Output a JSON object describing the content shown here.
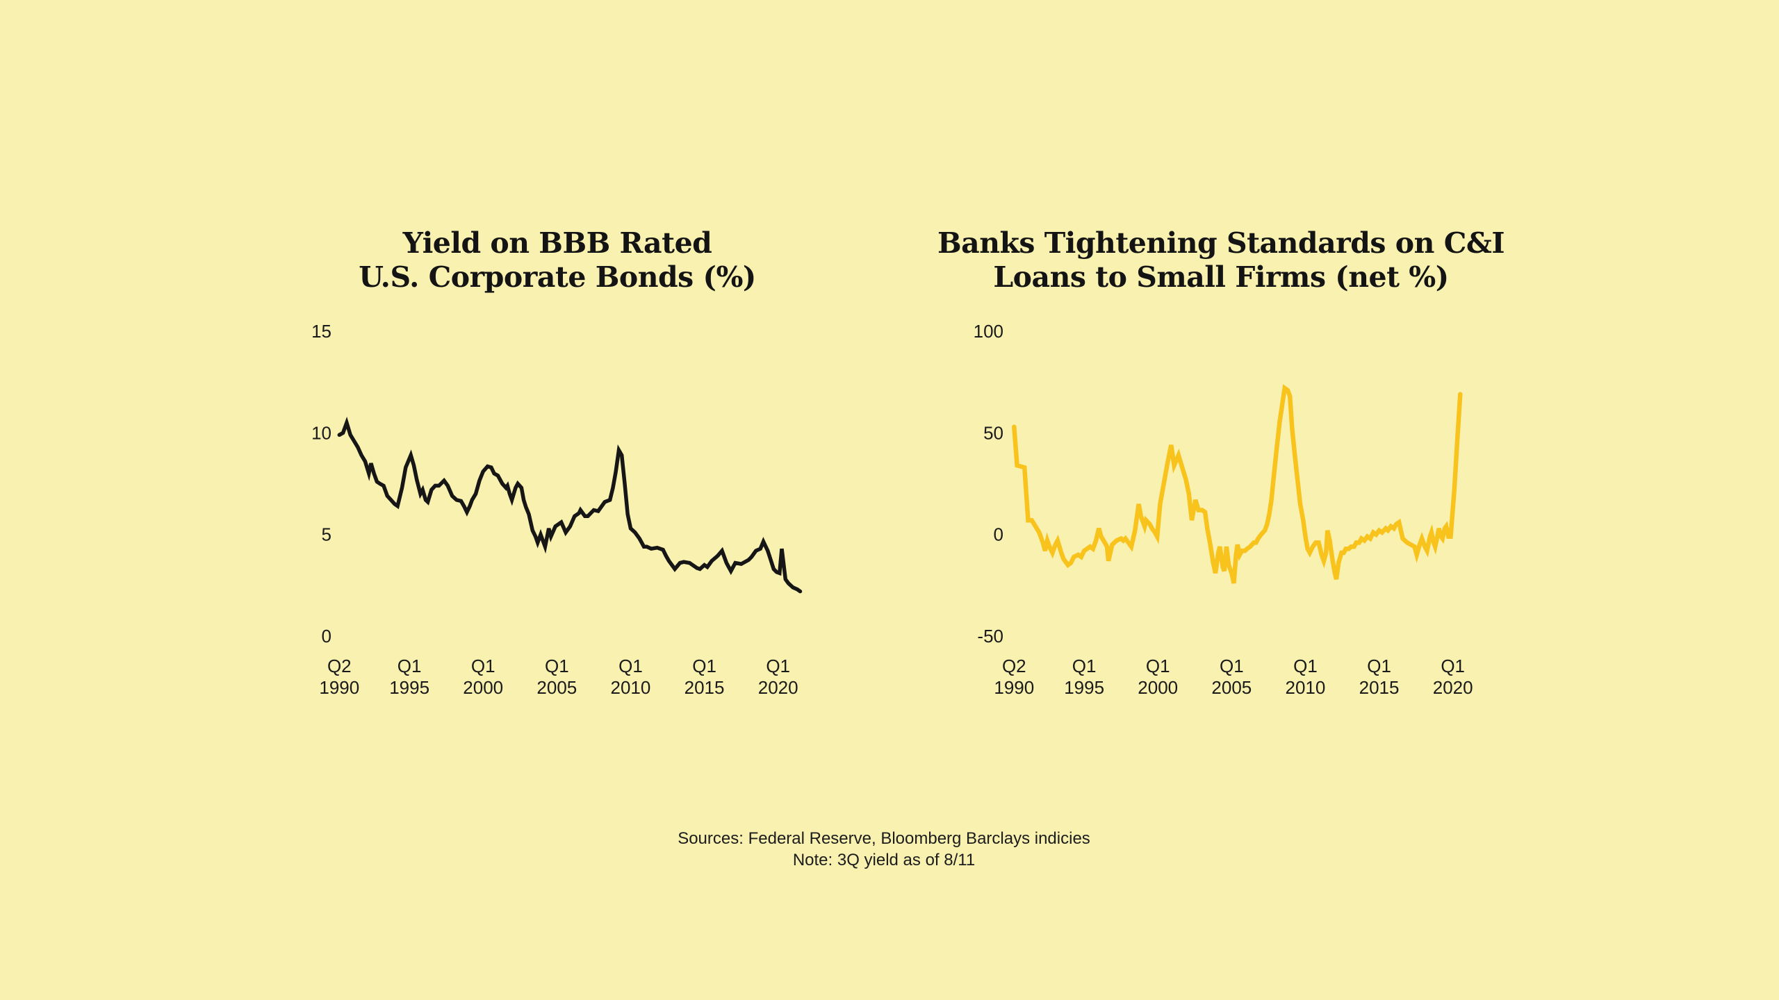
{
  "page": {
    "background": "#F9F1B0",
    "text_color": "#1a1a1a"
  },
  "footer": {
    "sources": "Sources: Federal Reserve, Bloomberg Barclays indicies",
    "note": "Note: 3Q yield as of 8/11"
  },
  "chart_data": [
    {
      "type": "line",
      "title_lines": [
        "Yield on BBB Rated",
        "U.S. Corporate Bonds (%)"
      ],
      "line_color": "#161616",
      "stroke_width": 5.5,
      "xlabel": "",
      "ylabel": "",
      "ylim": [
        0,
        15
      ],
      "xlim_years": [
        1990.0,
        2021.9
      ],
      "grid": false,
      "legend": "none",
      "y_ticks": [
        {
          "label": "15",
          "value": 15
        },
        {
          "label": "10",
          "value": 10
        },
        {
          "label": "5",
          "value": 5
        },
        {
          "label": "0",
          "value": 0
        }
      ],
      "x_ticks": [
        {
          "line1": "Q2",
          "line2": "1990",
          "year": 1990.25
        },
        {
          "line1": "Q1",
          "line2": "1995",
          "year": 1995.0
        },
        {
          "line1": "Q1",
          "line2": "2000",
          "year": 2000.0
        },
        {
          "line1": "Q1",
          "line2": "2005",
          "year": 2005.0
        },
        {
          "line1": "Q1",
          "line2": "2010",
          "year": 2010.0
        },
        {
          "line1": "Q1",
          "line2": "2015",
          "year": 2015.0
        },
        {
          "line1": "Q1",
          "line2": "2020",
          "year": 2020.0
        }
      ],
      "points": [
        [
          1990.25,
          9.9
        ],
        [
          1990.5,
          10.0
        ],
        [
          1990.75,
          10.5
        ],
        [
          1991.0,
          9.9
        ],
        [
          1991.25,
          9.6
        ],
        [
          1991.5,
          9.3
        ],
        [
          1991.75,
          8.9
        ],
        [
          1992.0,
          8.6
        ],
        [
          1992.25,
          8.0
        ],
        [
          1992.4,
          8.5
        ],
        [
          1992.6,
          8.0
        ],
        [
          1992.8,
          7.6
        ],
        [
          1993.0,
          7.5
        ],
        [
          1993.25,
          7.4
        ],
        [
          1993.5,
          6.9
        ],
        [
          1993.75,
          6.7
        ],
        [
          1994.0,
          6.5
        ],
        [
          1994.2,
          6.4
        ],
        [
          1994.5,
          7.3
        ],
        [
          1994.75,
          8.3
        ],
        [
          1995.1,
          8.9
        ],
        [
          1995.3,
          8.4
        ],
        [
          1995.5,
          7.7
        ],
        [
          1995.75,
          7.0
        ],
        [
          1995.9,
          7.2
        ],
        [
          1996.1,
          6.7
        ],
        [
          1996.25,
          6.6
        ],
        [
          1996.5,
          7.2
        ],
        [
          1996.75,
          7.4
        ],
        [
          1997.0,
          7.4
        ],
        [
          1997.35,
          7.65
        ],
        [
          1997.6,
          7.4
        ],
        [
          1997.9,
          6.9
        ],
        [
          1998.2,
          6.7
        ],
        [
          1998.5,
          6.65
        ],
        [
          1998.7,
          6.4
        ],
        [
          1998.9,
          6.1
        ],
        [
          1999.1,
          6.4
        ],
        [
          1999.25,
          6.7
        ],
        [
          1999.5,
          7.0
        ],
        [
          1999.75,
          7.65
        ],
        [
          2000.0,
          8.1
        ],
        [
          2000.3,
          8.35
        ],
        [
          2000.55,
          8.3
        ],
        [
          2000.75,
          8.0
        ],
        [
          2001.0,
          7.9
        ],
        [
          2001.3,
          7.5
        ],
        [
          2001.55,
          7.3
        ],
        [
          2001.65,
          7.4
        ],
        [
          2001.8,
          7.0
        ],
        [
          2001.95,
          6.7
        ],
        [
          2002.2,
          7.3
        ],
        [
          2002.35,
          7.5
        ],
        [
          2002.6,
          7.3
        ],
        [
          2002.75,
          6.7
        ],
        [
          2002.9,
          6.35
        ],
        [
          2003.1,
          6.0
        ],
        [
          2003.35,
          5.2
        ],
        [
          2003.55,
          4.9
        ],
        [
          2003.7,
          4.6
        ],
        [
          2003.9,
          5.0
        ],
        [
          2004.2,
          4.4
        ],
        [
          2004.45,
          5.3
        ],
        [
          2004.6,
          4.9
        ],
        [
          2004.9,
          5.4
        ],
        [
          2005.3,
          5.6
        ],
        [
          2005.6,
          5.1
        ],
        [
          2005.9,
          5.4
        ],
        [
          2006.2,
          5.9
        ],
        [
          2006.5,
          6.05
        ],
        [
          2006.6,
          6.2
        ],
        [
          2006.9,
          5.9
        ],
        [
          2007.1,
          5.9
        ],
        [
          2007.5,
          6.2
        ],
        [
          2007.8,
          6.15
        ],
        [
          2008.25,
          6.6
        ],
        [
          2008.6,
          6.7
        ],
        [
          2008.8,
          7.3
        ],
        [
          2009.0,
          8.1
        ],
        [
          2009.2,
          9.15
        ],
        [
          2009.4,
          8.9
        ],
        [
          2009.6,
          7.5
        ],
        [
          2009.8,
          6.0
        ],
        [
          2010.0,
          5.3
        ],
        [
          2010.3,
          5.1
        ],
        [
          2010.6,
          4.8
        ],
        [
          2010.9,
          4.4
        ],
        [
          2011.1,
          4.4
        ],
        [
          2011.4,
          4.3
        ],
        [
          2011.8,
          4.35
        ],
        [
          2012.2,
          4.25
        ],
        [
          2012.4,
          3.95
        ],
        [
          2012.6,
          3.7
        ],
        [
          2012.8,
          3.5
        ],
        [
          2013.0,
          3.3
        ],
        [
          2013.35,
          3.6
        ],
        [
          2013.6,
          3.65
        ],
        [
          2014.0,
          3.6
        ],
        [
          2014.5,
          3.35
        ],
        [
          2014.7,
          3.3
        ],
        [
          2015.0,
          3.5
        ],
        [
          2015.2,
          3.4
        ],
        [
          2015.5,
          3.7
        ],
        [
          2015.9,
          3.95
        ],
        [
          2016.2,
          4.2
        ],
        [
          2016.5,
          3.6
        ],
        [
          2016.8,
          3.2
        ],
        [
          2017.1,
          3.6
        ],
        [
          2017.5,
          3.55
        ],
        [
          2018.0,
          3.75
        ],
        [
          2018.2,
          3.9
        ],
        [
          2018.5,
          4.2
        ],
        [
          2018.8,
          4.3
        ],
        [
          2019.0,
          4.65
        ],
        [
          2019.3,
          4.2
        ],
        [
          2019.5,
          3.75
        ],
        [
          2019.7,
          3.3
        ],
        [
          2019.9,
          3.15
        ],
        [
          2020.1,
          3.1
        ],
        [
          2020.25,
          4.3
        ],
        [
          2020.5,
          2.8
        ],
        [
          2020.7,
          2.6
        ],
        [
          2021.0,
          2.4
        ],
        [
          2021.3,
          2.3
        ],
        [
          2021.5,
          2.2
        ]
      ]
    },
    {
      "type": "line",
      "title_lines": [
        "Banks Tightening Standards on C&I",
        "Loans to Small Firms (net %)"
      ],
      "line_color": "#F8C31D",
      "stroke_width": 6.5,
      "xlabel": "",
      "ylabel": "",
      "ylim": [
        -50,
        100
      ],
      "xlim_years": [
        1990.0,
        2021.9
      ],
      "grid": false,
      "legend": "none",
      "y_ticks": [
        {
          "label": "100",
          "value": 100
        },
        {
          "label": "50",
          "value": 50
        },
        {
          "label": "0",
          "value": 0
        },
        {
          "label": "-50",
          "value": -50
        }
      ],
      "x_ticks": [
        {
          "line1": "Q2",
          "line2": "1990",
          "year": 1990.25
        },
        {
          "line1": "Q1",
          "line2": "1995",
          "year": 1995.0
        },
        {
          "line1": "Q1",
          "line2": "2000",
          "year": 2000.0
        },
        {
          "line1": "Q1",
          "line2": "2005",
          "year": 2005.0
        },
        {
          "line1": "Q1",
          "line2": "2010",
          "year": 2010.0
        },
        {
          "line1": "Q1",
          "line2": "2015",
          "year": 2015.0
        },
        {
          "line1": "Q1",
          "line2": "2020",
          "year": 2020.0
        }
      ],
      "points": [
        [
          1990.25,
          53
        ],
        [
          1990.45,
          34
        ],
        [
          1990.95,
          33
        ],
        [
          1991.2,
          7
        ],
        [
          1991.45,
          7
        ],
        [
          1991.7,
          4
        ],
        [
          1991.95,
          1
        ],
        [
          1992.2,
          -4
        ],
        [
          1992.35,
          -8
        ],
        [
          1992.5,
          -3
        ],
        [
          1992.65,
          -6
        ],
        [
          1992.85,
          -9
        ],
        [
          1993.05,
          -5
        ],
        [
          1993.2,
          -3
        ],
        [
          1993.45,
          -9
        ],
        [
          1993.6,
          -12
        ],
        [
          1993.9,
          -15
        ],
        [
          1994.1,
          -14
        ],
        [
          1994.3,
          -11
        ],
        [
          1994.6,
          -10
        ],
        [
          1994.8,
          -11
        ],
        [
          1995.0,
          -8
        ],
        [
          1995.2,
          -7
        ],
        [
          1995.4,
          -6
        ],
        [
          1995.6,
          -7
        ],
        [
          1995.8,
          -3
        ],
        [
          1996.0,
          3
        ],
        [
          1996.15,
          -1
        ],
        [
          1996.4,
          -4
        ],
        [
          1996.55,
          -6
        ],
        [
          1996.65,
          -13
        ],
        [
          1996.9,
          -5
        ],
        [
          1997.2,
          -3
        ],
        [
          1997.5,
          -2
        ],
        [
          1997.65,
          -3
        ],
        [
          1997.8,
          -2
        ],
        [
          1998.0,
          -4
        ],
        [
          1998.2,
          -6
        ],
        [
          1998.45,
          2
        ],
        [
          1998.7,
          15
        ],
        [
          1998.85,
          9
        ],
        [
          1999.0,
          6
        ],
        [
          1999.1,
          4
        ],
        [
          1999.2,
          7
        ],
        [
          1999.45,
          5
        ],
        [
          1999.6,
          3
        ],
        [
          1999.8,
          1
        ],
        [
          1999.95,
          -1
        ],
        [
          2000.15,
          15
        ],
        [
          2000.4,
          25
        ],
        [
          2000.65,
          35
        ],
        [
          2000.9,
          44
        ],
        [
          2001.1,
          34
        ],
        [
          2001.4,
          39
        ],
        [
          2001.65,
          33
        ],
        [
          2001.9,
          27
        ],
        [
          2002.1,
          20
        ],
        [
          2002.3,
          7
        ],
        [
          2002.55,
          17
        ],
        [
          2002.75,
          12
        ],
        [
          2003.0,
          12
        ],
        [
          2003.2,
          11
        ],
        [
          2003.35,
          3
        ],
        [
          2003.55,
          -5
        ],
        [
          2003.75,
          -14
        ],
        [
          2003.9,
          -19
        ],
        [
          2004.1,
          -9
        ],
        [
          2004.2,
          -6
        ],
        [
          2004.4,
          -16
        ],
        [
          2004.5,
          -18
        ],
        [
          2004.65,
          -6
        ],
        [
          2004.8,
          -15
        ],
        [
          2005.0,
          -19
        ],
        [
          2005.15,
          -24
        ],
        [
          2005.3,
          -10
        ],
        [
          2005.4,
          -5
        ],
        [
          2005.55,
          -10
        ],
        [
          2005.7,
          -8
        ],
        [
          2005.9,
          -8
        ],
        [
          2006.05,
          -7
        ],
        [
          2006.25,
          -6
        ],
        [
          2006.5,
          -4
        ],
        [
          2006.65,
          -4
        ],
        [
          2006.8,
          -2
        ],
        [
          2007.0,
          0
        ],
        [
          2007.25,
          2
        ],
        [
          2007.4,
          5
        ],
        [
          2007.55,
          10
        ],
        [
          2007.7,
          17
        ],
        [
          2007.85,
          28
        ],
        [
          2008.05,
          42
        ],
        [
          2008.25,
          55
        ],
        [
          2008.45,
          65
        ],
        [
          2008.6,
          72
        ],
        [
          2008.8,
          71
        ],
        [
          2008.95,
          68
        ],
        [
          2009.1,
          52
        ],
        [
          2009.3,
          38
        ],
        [
          2009.45,
          28
        ],
        [
          2009.65,
          15
        ],
        [
          2009.85,
          7
        ],
        [
          2010.0,
          -1
        ],
        [
          2010.15,
          -7
        ],
        [
          2010.3,
          -9
        ],
        [
          2010.5,
          -6
        ],
        [
          2010.7,
          -4
        ],
        [
          2010.9,
          -4
        ],
        [
          2011.1,
          -10
        ],
        [
          2011.25,
          -13
        ],
        [
          2011.4,
          -9
        ],
        [
          2011.5,
          2
        ],
        [
          2011.65,
          -3
        ],
        [
          2011.85,
          -13
        ],
        [
          2012.0,
          -19
        ],
        [
          2012.1,
          -22
        ],
        [
          2012.25,
          -14
        ],
        [
          2012.45,
          -9
        ],
        [
          2012.6,
          -9
        ],
        [
          2012.75,
          -7
        ],
        [
          2012.95,
          -7
        ],
        [
          2013.1,
          -6
        ],
        [
          2013.3,
          -6
        ],
        [
          2013.45,
          -4
        ],
        [
          2013.65,
          -4
        ],
        [
          2013.8,
          -2
        ],
        [
          2014.0,
          -3
        ],
        [
          2014.2,
          -1
        ],
        [
          2014.4,
          -2
        ],
        [
          2014.6,
          1
        ],
        [
          2014.8,
          0
        ],
        [
          2015.0,
          2
        ],
        [
          2015.2,
          1
        ],
        [
          2015.45,
          3
        ],
        [
          2015.6,
          2
        ],
        [
          2015.8,
          4
        ],
        [
          2016.0,
          3
        ],
        [
          2016.15,
          5
        ],
        [
          2016.35,
          6
        ],
        [
          2016.6,
          -2
        ],
        [
          2016.9,
          -4
        ],
        [
          2017.15,
          -5
        ],
        [
          2017.4,
          -6
        ],
        [
          2017.55,
          -10
        ],
        [
          2017.75,
          -5
        ],
        [
          2017.9,
          -2
        ],
        [
          2018.1,
          -6
        ],
        [
          2018.25,
          -8
        ],
        [
          2018.45,
          -1
        ],
        [
          2018.55,
          1
        ],
        [
          2018.7,
          -4
        ],
        [
          2018.8,
          -6
        ],
        [
          2018.95,
          -1
        ],
        [
          2019.05,
          3
        ],
        [
          2019.2,
          -1
        ],
        [
          2019.3,
          -2
        ],
        [
          2019.45,
          3
        ],
        [
          2019.55,
          4
        ],
        [
          2019.7,
          -1
        ],
        [
          2019.85,
          -1
        ],
        [
          2020.1,
          22
        ],
        [
          2020.3,
          46
        ],
        [
          2020.5,
          69
        ]
      ]
    }
  ]
}
